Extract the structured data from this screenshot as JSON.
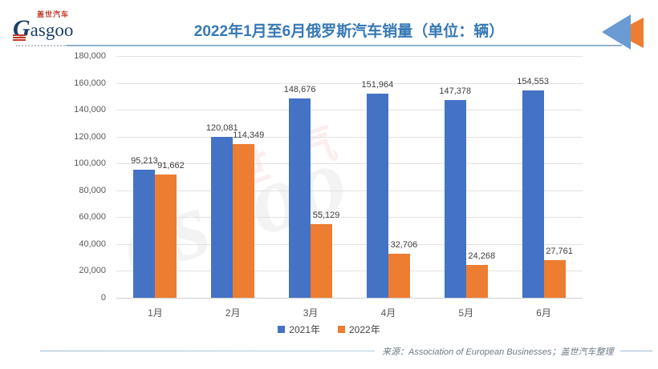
{
  "header": {
    "logo": {
      "brand_cn": "盖世汽车",
      "brand_initial": "G",
      "brand_rest": "asgoo"
    },
    "title": "2022年1月至6月俄罗斯汽车销量（单位：辆）"
  },
  "watermark": {
    "latin": "asgoo",
    "cn": "世汽"
  },
  "chart_data": {
    "type": "bar",
    "title": "2022年1月至6月俄罗斯汽车销量（单位：辆）",
    "categories": [
      "1月",
      "2月",
      "3月",
      "4月",
      "5月",
      "6月"
    ],
    "series": [
      {
        "name": "2021年",
        "color": "#4472C4",
        "values": [
          95213,
          120081,
          148676,
          151964,
          147378,
          154553
        ]
      },
      {
        "name": "2022年",
        "color": "#ED7D31",
        "values": [
          91662,
          114349,
          55129,
          32706,
          24268,
          27761
        ]
      }
    ],
    "xlabel": "",
    "ylabel": "",
    "ylim": [
      0,
      180000
    ],
    "ytick_step": 20000,
    "yticks": [
      "180,000",
      "160,000",
      "140,000",
      "120,000",
      "100,000",
      "80,000",
      "60,000",
      "40,000",
      "20,000",
      "0"
    ],
    "grid": true,
    "legend_position": "bottom",
    "data_labels": true
  },
  "footer": {
    "source": "来源：Association of European Businesses；盖世汽车整理"
  },
  "colors": {
    "title": "#3679B5",
    "series_2021": "#4472C4",
    "series_2022": "#ED7D31",
    "underline": "#8FB3D3",
    "gridline": "#E2E2E2",
    "axis_text": "#595959",
    "label_text": "#404040",
    "source_text": "#6E7A87",
    "arrow_blue": "#6B9BD2",
    "arrow_orange": "#ED7D31"
  }
}
